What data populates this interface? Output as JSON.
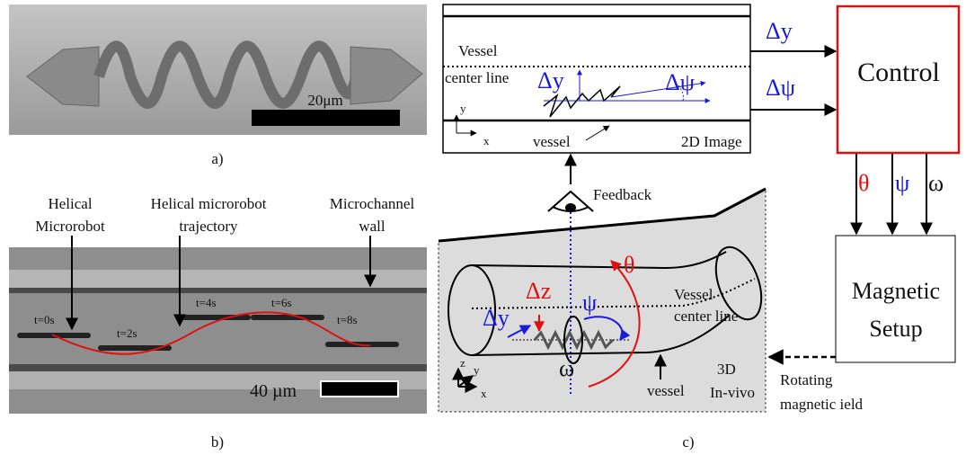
{
  "panel_a": {
    "scale_label": "20μm",
    "caption": "a)"
  },
  "panel_b": {
    "labels": [
      [
        "Helical",
        "Microrobot"
      ],
      [
        "Helical microrobot",
        "trajectory"
      ],
      [
        "Microchannel",
        "wall"
      ]
    ],
    "times": [
      "t=0s",
      "t=2s",
      "t=4s",
      "t=6s",
      "t=8s"
    ],
    "scale_label": "40 µm",
    "caption": "b)"
  },
  "panel_c": {
    "image_2d": {
      "vessel_label": [
        "Vessel",
        "center line"
      ],
      "delta_y": "Δy",
      "delta_psi": "Δψ",
      "axis_y": "y",
      "axis_x": "x",
      "wall_label": "vessel",
      "title": "2D Image"
    },
    "outputs": {
      "delta_y": "Δy",
      "delta_psi": "Δψ"
    },
    "control": "Control",
    "inputs": {
      "theta": "θ",
      "psi": "ψ",
      "omega": "ω"
    },
    "magnetic": [
      "Magnetic",
      "Setup"
    ],
    "feedback": "Feedback",
    "invivo": {
      "delta_z": "Δz",
      "psi": "ψ",
      "theta": "θ",
      "vessel_label": [
        "Vessel",
        "center line"
      ],
      "delta_y": "Δy",
      "omega": "ω",
      "axis_z": "z",
      "axis_y": "y",
      "axis_x": "x",
      "wall_label": "vessel",
      "title": [
        "3D",
        "In-vivo"
      ]
    },
    "field": [
      "Rotating",
      "magnetic ield"
    ],
    "caption": "c)"
  }
}
